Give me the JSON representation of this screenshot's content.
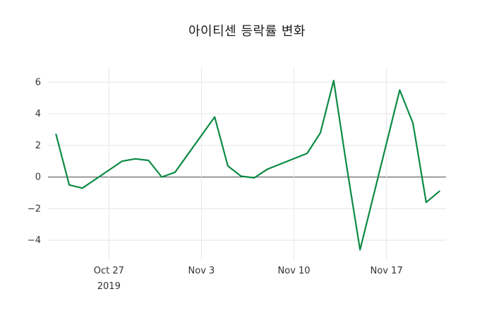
{
  "chart_data": {
    "type": "line",
    "title": "아이티센 등락률 변화",
    "series_name": "등락률",
    "line_color": "#0b8b44",
    "line_width": 2.2,
    "background": "#ffffff",
    "x": [
      "2019-10-23",
      "2019-10-24",
      "2019-10-25",
      "2019-10-28",
      "2019-10-29",
      "2019-10-30",
      "2019-10-31",
      "2019-11-01",
      "2019-11-04",
      "2019-11-05",
      "2019-11-06",
      "2019-11-07",
      "2019-11-08",
      "2019-11-11",
      "2019-11-12",
      "2019-11-13",
      "2019-11-14",
      "2019-11-15",
      "2019-11-18",
      "2019-11-19",
      "2019-11-20",
      "2019-11-21"
    ],
    "values": [
      2.7,
      -0.5,
      -0.7,
      1.0,
      1.15,
      1.05,
      0.0,
      0.3,
      3.8,
      0.7,
      0.05,
      -0.05,
      0.5,
      1.5,
      2.8,
      6.1,
      0.6,
      -4.6,
      5.5,
      3.4,
      -1.6,
      -0.9
    ],
    "xlabel": "",
    "ylabel": "",
    "ylim": [
      -5.25,
      6.95
    ],
    "xlim": [
      "2019-10-22T12:00:00Z",
      "2019-11-21T12:00:00Z"
    ],
    "yticks": [
      -4,
      -2,
      0,
      2,
      4,
      6
    ],
    "xticks": [
      {
        "date": "2019-10-27",
        "label": "Oct 27",
        "sublabel": "2019"
      },
      {
        "date": "2019-11-03",
        "label": "Nov 3",
        "sublabel": ""
      },
      {
        "date": "2019-11-10",
        "label": "Nov 10",
        "sublabel": ""
      },
      {
        "date": "2019-11-17",
        "label": "Nov 17",
        "sublabel": ""
      }
    ],
    "grid": {
      "show": true,
      "color": "#e6e6e6",
      "zero_line_color": "#4a4a4a"
    },
    "legend": {
      "show": false
    }
  }
}
